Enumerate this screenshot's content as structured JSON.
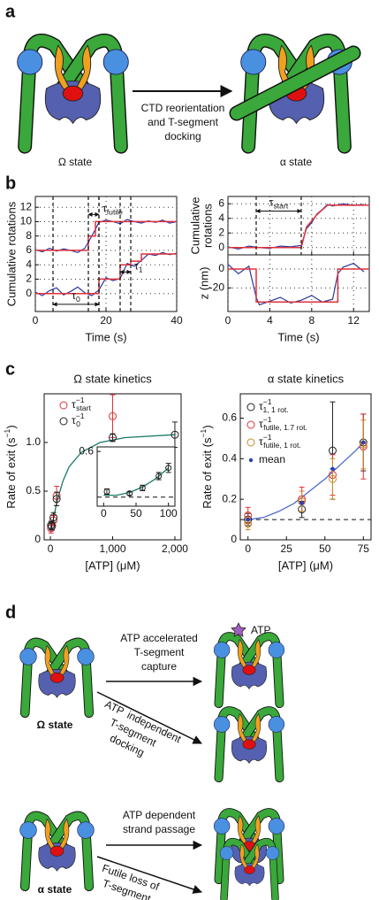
{
  "a": {
    "label": "a",
    "left_caption": "Ω state",
    "arrow_text": [
      "CTD reorientation",
      "and T-segment",
      "docking"
    ],
    "right_caption": "α state"
  },
  "b": {
    "label": "b"
  },
  "c": {
    "label": "c"
  },
  "d": {
    "label": "d",
    "atp_legend": "ATP",
    "omega_label": "Ω state",
    "alpha_label": "α state",
    "capture_text": [
      "ATP accelerated",
      "T-segment",
      "capture"
    ],
    "docking_text": [
      "ATP",
      "independent",
      "T-segment",
      "docking"
    ],
    "passage_text": [
      "ATP dependent",
      "strand passage"
    ],
    "futile_text": [
      "Futile loss of",
      "T-segment"
    ]
  },
  "chart_data": [
    {
      "type": "line",
      "xlabel": "Time (s)",
      "ylabel": "Cumulative rotations",
      "xlim": [
        0,
        40
      ],
      "xticks": [
        0,
        20,
        40
      ],
      "ylim": [
        -2.5,
        13.5
      ],
      "yticks": [
        0,
        2,
        4,
        6,
        8,
        10,
        12
      ],
      "grid": true,
      "series": [
        {
          "color": "#2b3a9e",
          "x": [
            0,
            2,
            4,
            6,
            8,
            10,
            12,
            14,
            16,
            18,
            20,
            22,
            24,
            26,
            28,
            30,
            32,
            34,
            36,
            38,
            40
          ],
          "values": [
            0.2,
            -0.3,
            0.4,
            0.8,
            -0.2,
            0.3,
            0.9,
            0.1,
            -0.3,
            0.5,
            2.2,
            1.8,
            2.1,
            4.2,
            3.8,
            4.6,
            5.5,
            5.3,
            5.7,
            5.4,
            5.6
          ]
        },
        {
          "color": "#e0303a",
          "x": [
            0,
            18,
            18,
            24,
            24,
            27,
            27,
            30,
            30,
            40
          ],
          "values": [
            0,
            0,
            2,
            2,
            4,
            4,
            4.5,
            4.5,
            5.5,
            5.5
          ]
        },
        {
          "color": "#2b3a9e",
          "x": [
            0,
            2,
            4,
            6,
            8,
            10,
            12,
            14,
            16,
            18,
            20,
            22,
            24,
            26,
            28,
            30,
            32,
            34,
            36,
            38,
            40
          ],
          "values": [
            6.1,
            5.8,
            6.3,
            5.9,
            6.2,
            6.0,
            5.7,
            6.3,
            8.0,
            9.9,
            10.2,
            10.0,
            9.7,
            10.3,
            10.0,
            9.8,
            10.1,
            9.9,
            10.2,
            9.8,
            10.0
          ]
        },
        {
          "color": "#e0303a",
          "x": [
            0,
            15,
            15,
            17,
            17,
            40
          ],
          "values": [
            6,
            6,
            8,
            8,
            10,
            10
          ]
        }
      ],
      "annotations": [
        {
          "symbol": "τ",
          "sub": "futile",
          "x1": 15,
          "x2": 18,
          "y": 11
        },
        {
          "symbol": "τ",
          "sub": "1",
          "x1": 24,
          "x2": 27,
          "y": 3
        },
        {
          "symbol": "τ",
          "sub": "0",
          "x1": 5,
          "x2": 18,
          "y": -1.5
        }
      ]
    },
    {
      "type": "line",
      "ylabel": [
        "Cumulative",
        "rotations"
      ],
      "xlim": [
        0,
        13.5
      ],
      "xticks": [
        0,
        4,
        8,
        12
      ],
      "show_xtick_labels": false,
      "ylim": [
        -1,
        7
      ],
      "yticks": [
        0,
        2,
        4,
        6
      ],
      "grid": true,
      "series": [
        {
          "color": "#2b3a9e",
          "x": [
            0,
            1,
            2,
            3,
            4,
            5,
            6,
            7,
            7.5,
            8,
            8.5,
            9,
            9.5,
            10,
            11,
            12,
            13
          ],
          "values": [
            0.1,
            -0.2,
            0.2,
            0,
            -0.1,
            0.2,
            0.1,
            0.3,
            2.6,
            3.4,
            4.6,
            5.2,
            5.9,
            5.7,
            6.0,
            5.8,
            5.9
          ]
        },
        {
          "color": "#e0303a",
          "x": [
            0,
            7,
            7.5,
            8.5,
            9.5,
            13.5
          ],
          "values": [
            0,
            0,
            2.8,
            4.5,
            5.8,
            5.8
          ]
        }
      ],
      "annotations": [
        {
          "symbol": "τ",
          "sub": "start",
          "x1": 2.7,
          "x2": 7,
          "y": 5
        }
      ]
    },
    {
      "type": "line",
      "xlabel": "Time (s)",
      "ylabel": "z (nm)",
      "xlim": [
        0,
        13.5
      ],
      "xticks": [
        0,
        4,
        8,
        12
      ],
      "ylim": [
        -45,
        15
      ],
      "yticks": [
        -20,
        0
      ],
      "grid": true,
      "series": [
        {
          "color": "#2b3a9e",
          "x": [
            0,
            1,
            2,
            2.7,
            3,
            4,
            5,
            6,
            7,
            8,
            9,
            10,
            10.5,
            11,
            12,
            13
          ],
          "values": [
            5,
            -5,
            3,
            -30,
            -38,
            -34,
            -30,
            -36,
            -33,
            -28,
            -35,
            -32,
            -5,
            2,
            6,
            -3
          ]
        },
        {
          "color": "#e0303a",
          "x": [
            0,
            2.7,
            2.7,
            10.5,
            10.5,
            13.5
          ],
          "values": [
            0,
            0,
            -35,
            -35,
            0,
            0
          ]
        }
      ]
    },
    {
      "type": "scatter",
      "title": "Ω state kinetics",
      "xlabel": "[ATP] (μM)",
      "ylabel": {
        "text": "Rate of exit (s",
        "sup": "−1",
        "after": ")"
      },
      "xlim": [
        -100,
        2100
      ],
      "xticks": [
        0,
        {
          "value": 1000,
          "label": "1,000"
        },
        {
          "value": 2000,
          "label": "2,000"
        }
      ],
      "ylim": [
        0,
        1.5
      ],
      "yticks": [
        0,
        0.5,
        {
          "value": 1,
          "label": "1.0"
        }
      ],
      "series": [
        {
          "name": {
            "symbol": "τ",
            "sup": "−1",
            "sub": "start"
          },
          "color": "#e0303a",
          "x": [
            10,
            50,
            100,
            1000
          ],
          "values": [
            0.12,
            0.2,
            0.45,
            1.27
          ],
          "errors": [
            0.05,
            0.05,
            0.1,
            0.22
          ]
        },
        {
          "name": {
            "symbol": "τ",
            "sup": "−1",
            "sub": "0"
          },
          "color": "#222222",
          "x": [
            10,
            25,
            50,
            100,
            1000,
            2000
          ],
          "values": [
            0.15,
            0.14,
            0.23,
            0.42,
            1.05,
            1.08
          ],
          "errors": [
            0.04,
            0.04,
            0.05,
            0.07,
            0.04,
            0.13
          ]
        }
      ],
      "fit": {
        "color": "#1a7a6a",
        "x": [
          0,
          50,
          100,
          200,
          300,
          500,
          800,
          1200,
          2000
        ],
        "values": [
          0.1,
          0.22,
          0.38,
          0.6,
          0.75,
          0.9,
          1.0,
          1.05,
          1.08
        ]
      }
    },
    {
      "type": "scatter",
      "xlim": [
        -10,
        110
      ],
      "xticks": [
        0,
        50,
        100
      ],
      "ylim": [
        0,
        0.65
      ],
      "yticks": [
        0.6
      ],
      "baseline": 0.1,
      "series": [
        {
          "color": "#222222",
          "x": [
            5,
            40,
            60,
            85,
            100
          ],
          "values": [
            0.16,
            0.14,
            0.2,
            0.33,
            0.42
          ],
          "errors": [
            0.03,
            0.02,
            0.03,
            0.04,
            0.05
          ]
        }
      ],
      "fit": {
        "color": "#1a7a6a",
        "x": [
          0,
          20,
          40,
          60,
          80,
          100
        ],
        "values": [
          0.12,
          0.12,
          0.15,
          0.21,
          0.3,
          0.42
        ]
      }
    },
    {
      "type": "scatter",
      "title": "α state kinetics",
      "xlabel": "[ATP] (μM)",
      "ylabel": {
        "text": "Rate of exit (s",
        "sup": "−1",
        "after": ")"
      },
      "xlim": [
        -5,
        80
      ],
      "xticks": [
        0,
        25,
        50,
        75
      ],
      "ylim": [
        0,
        0.72
      ],
      "yticks": [
        0,
        0.2,
        0.4,
        0.6
      ],
      "baseline": 0.1,
      "series": [
        {
          "name": {
            "symbol": "τ",
            "sup": "−1",
            "sub": "1, 1 rot."
          },
          "color": "#222222",
          "x": [
            0,
            35,
            55,
            75
          ],
          "values": [
            0.1,
            0.15,
            0.44,
            0.48
          ],
          "errors": [
            0.03,
            0.04,
            0.24,
            0.14
          ]
        },
        {
          "name": {
            "symbol": "τ",
            "sup": "−1",
            "sub": "futile, 1.7 rot."
          },
          "color": "#e0303a",
          "x": [
            0,
            35,
            55,
            75
          ],
          "values": [
            0.12,
            0.2,
            0.32,
            0.46
          ],
          "errors": [
            0.04,
            0.06,
            0.1,
            0.16
          ]
        },
        {
          "name": {
            "symbol": "τ",
            "sup": "−1",
            "sub": "futile, 1 rot."
          },
          "color": "#c88a2a",
          "x": [
            0,
            35,
            55,
            75
          ],
          "values": [
            0.08,
            0.19,
            0.3,
            0.47
          ],
          "errors": [
            0.03,
            0.05,
            0.1,
            0.12
          ]
        },
        {
          "name": "mean",
          "color": "#2a3fb0",
          "marker": "dot",
          "x": [
            0,
            35,
            55,
            75
          ],
          "values": [
            0.1,
            0.18,
            0.35,
            0.48
          ],
          "errors": [
            0,
            0,
            0,
            0
          ]
        }
      ],
      "fit": {
        "color": "#4a6ad0",
        "x": [
          0,
          10,
          20,
          30,
          40,
          50,
          60,
          70,
          75
        ],
        "values": [
          0.1,
          0.11,
          0.14,
          0.18,
          0.24,
          0.3,
          0.37,
          0.44,
          0.48
        ]
      }
    }
  ]
}
